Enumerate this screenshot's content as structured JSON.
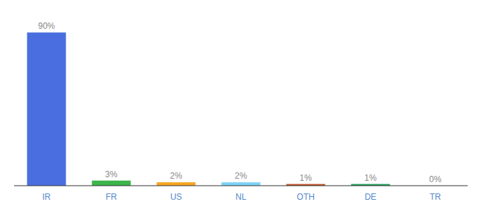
{
  "chart_data": {
    "type": "bar",
    "categories": [
      "IR",
      "FR",
      "US",
      "NL",
      "OTH",
      "DE",
      "TR"
    ],
    "values": [
      90,
      3,
      2,
      2,
      1,
      1,
      0
    ],
    "value_labels": [
      "90%",
      "3%",
      "2%",
      "2%",
      "1%",
      "1%",
      "0%"
    ],
    "colors": [
      "#4a6ee0",
      "#3cb54a",
      "#f5a623",
      "#7dd3f5",
      "#c0572b",
      "#27a060",
      "#aaaaaa"
    ],
    "ylim": [
      0,
      100
    ],
    "data_labels": true,
    "tick_labels": "x",
    "grid": false
  }
}
